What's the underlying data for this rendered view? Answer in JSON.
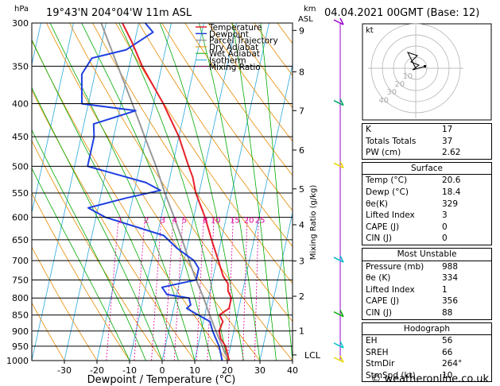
{
  "header": {
    "location": "19°43'N  204°04'W  11m  ASL",
    "datetime": "04.04.2021  00GMT  (Base: 12)",
    "pressure_unit": "hPa",
    "height_unit_line1": "km",
    "height_unit_line2": "ASL"
  },
  "chart_data": {
    "type": "skew-t",
    "xlabel": "Dewpoint / Temperature (°C)",
    "ylabel_left": "hPa",
    "ylabel_right": "Mixing Ratio (g/kg)",
    "x_ticks": [
      -30,
      -20,
      -10,
      0,
      10,
      20,
      30,
      40
    ],
    "pressure_levels": [
      300,
      350,
      400,
      450,
      500,
      550,
      600,
      650,
      700,
      750,
      800,
      850,
      900,
      950,
      1000
    ],
    "xlim": [
      -40,
      40
    ],
    "ylim_hpa": [
      1000,
      300
    ],
    "km_ticks": [
      {
        "km": 9,
        "p": 308
      },
      {
        "km": 8,
        "p": 357
      },
      {
        "km": 7,
        "p": 410
      },
      {
        "km": 6,
        "p": 472
      },
      {
        "km": 5,
        "p": 542
      },
      {
        "km": 4,
        "p": 616
      },
      {
        "km": 3,
        "p": 701
      },
      {
        "km": 2,
        "p": 795
      },
      {
        "km": 1,
        "p": 899
      }
    ],
    "lcl_label": "LCL",
    "lcl_p": 980,
    "mixing_ratio_labels": [
      "1",
      "2",
      "3",
      "4",
      "5",
      "8",
      "10",
      "15",
      "20",
      "25"
    ],
    "mixing_ratio_values": [
      1,
      2,
      3,
      4,
      5,
      8,
      10,
      15,
      20,
      25
    ],
    "legend": [
      "Temperature",
      "Dewpoint",
      "Parcel Trajectory",
      "Dry Adiabat",
      "Wet Adiabat",
      "Isotherm",
      "Mixing Ratio"
    ],
    "colors": {
      "temperature": "#e8202a",
      "dewpoint": "#1f40e0",
      "parcel": "#999999",
      "dry_adiabat": "#e88a00",
      "wet_adiabat": "#00aa00",
      "isotherm": "#2aa8e0",
      "mixing_ratio": "#e0009a"
    },
    "temperature": [
      [
        1000,
        20.6
      ],
      [
        975,
        19.5
      ],
      [
        950,
        18.5
      ],
      [
        925,
        16.5
      ],
      [
        900,
        15.5
      ],
      [
        870,
        16
      ],
      [
        850,
        14.5
      ],
      [
        830,
        17
      ],
      [
        800,
        17
      ],
      [
        780,
        15.5
      ],
      [
        760,
        15
      ],
      [
        740,
        13
      ],
      [
        700,
        10.5
      ],
      [
        650,
        7
      ],
      [
        600,
        3.5
      ],
      [
        550,
        -1
      ],
      [
        520,
        -3
      ],
      [
        500,
        -5
      ],
      [
        450,
        -10
      ],
      [
        400,
        -17
      ],
      [
        350,
        -26
      ],
      [
        320,
        -31
      ],
      [
        300,
        -35
      ]
    ],
    "dewpoint": [
      [
        1000,
        18.4
      ],
      [
        975,
        17.5
      ],
      [
        950,
        16.5
      ],
      [
        925,
        15
      ],
      [
        900,
        13.5
      ],
      [
        870,
        12
      ],
      [
        850,
        8
      ],
      [
        830,
        4
      ],
      [
        820,
        5
      ],
      [
        800,
        4
      ],
      [
        790,
        -3
      ],
      [
        770,
        -5
      ],
      [
        750,
        5
      ],
      [
        720,
        5
      ],
      [
        700,
        3
      ],
      [
        670,
        -3
      ],
      [
        640,
        -8
      ],
      [
        600,
        -27
      ],
      [
        580,
        -33
      ],
      [
        560,
        -22
      ],
      [
        545,
        -12
      ],
      [
        530,
        -17
      ],
      [
        500,
        -36
      ],
      [
        450,
        -36
      ],
      [
        430,
        -37
      ],
      [
        410,
        -25
      ],
      [
        400,
        -42
      ],
      [
        360,
        -44
      ],
      [
        340,
        -42
      ],
      [
        330,
        -32
      ],
      [
        310,
        -25
      ],
      [
        300,
        -28
      ]
    ],
    "parcel": [
      [
        1000,
        20.6
      ],
      [
        975,
        18.8
      ],
      [
        950,
        17.5
      ],
      [
        900,
        14.5
      ],
      [
        850,
        11.5
      ],
      [
        800,
        8.5
      ],
      [
        750,
        5
      ],
      [
        700,
        1.5
      ],
      [
        650,
        -2
      ],
      [
        600,
        -6
      ],
      [
        550,
        -10.5
      ],
      [
        500,
        -15
      ],
      [
        450,
        -20.5
      ],
      [
        400,
        -26.5
      ],
      [
        350,
        -33.5
      ],
      [
        300,
        -41.5
      ]
    ],
    "hodograph": {
      "label": "kt",
      "ring_labels": [
        "10",
        "20",
        "30",
        "40"
      ]
    }
  },
  "info": {
    "K": "17",
    "Totals_Totals": "37",
    "PW": "2.62",
    "surface": {
      "title": "Surface",
      "Temp": "20.6",
      "Dewp": "18.4",
      "theta_e": "329",
      "Lifted_Index": "3",
      "CAPE": "0",
      "CIN": "0"
    },
    "most_unstable": {
      "title": "Most Unstable",
      "Pressure": "988",
      "theta_e": "334",
      "Lifted_Index": "1",
      "CAPE": "356",
      "CIN": "88"
    },
    "hodograph": {
      "title": "Hodograph",
      "EH": "56",
      "SREH": "66",
      "StmDir": "264°",
      "StmSpd": "10"
    }
  },
  "labels": {
    "K": "K",
    "Totals_Totals": "Totals Totals",
    "PW": "PW (cm)",
    "Temp": "Temp (°C)",
    "Dewp": "Dewp (°C)",
    "theta_e": "θe(K)",
    "theta_e_mu": "θe (K)",
    "Lifted_Index": "Lifted Index",
    "CAPE": "CAPE (J)",
    "CIN": "CIN (J)",
    "Pressure": "Pressure (mb)",
    "EH": "EH",
    "SREH": "SREH",
    "StmDir": "StmDir",
    "StmSpd": "StmSpd (kt)"
  },
  "footer": "© weatheronline.co.uk"
}
